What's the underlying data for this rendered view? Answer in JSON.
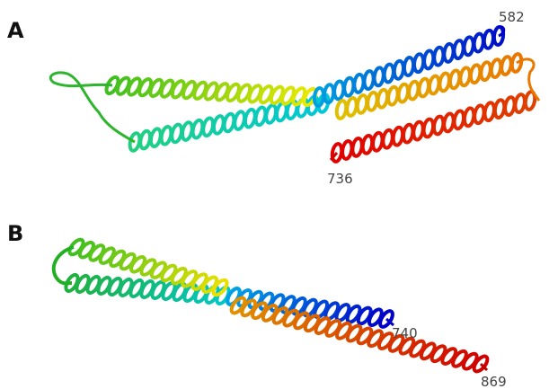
{
  "panels": [
    {
      "label": "A",
      "residues": [
        "582",
        "736"
      ]
    },
    {
      "label": "B",
      "residues": [
        "740",
        "869"
      ]
    }
  ]
}
